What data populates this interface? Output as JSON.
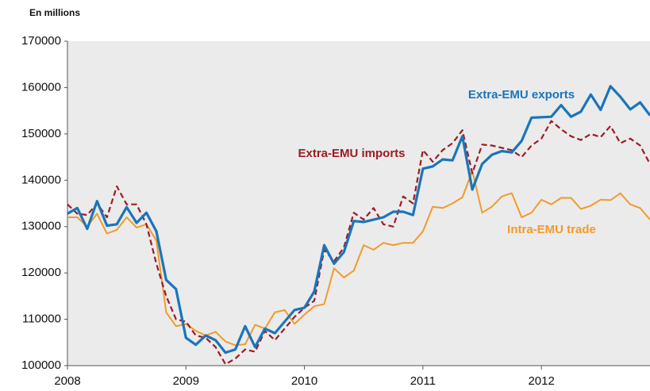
{
  "chart_data": {
    "type": "line",
    "y_axis_label": "En millions",
    "categories": [
      "2008",
      null,
      null,
      null,
      null,
      null,
      null,
      null,
      null,
      null,
      null,
      null,
      "2009",
      null,
      null,
      null,
      null,
      null,
      null,
      null,
      null,
      null,
      null,
      null,
      "2010",
      null,
      null,
      null,
      null,
      null,
      null,
      null,
      null,
      null,
      null,
      null,
      "2011",
      null,
      null,
      null,
      null,
      null,
      null,
      null,
      null,
      null,
      null,
      null,
      "2012",
      null,
      null,
      null,
      null,
      null,
      null,
      null,
      null,
      null,
      null,
      null
    ],
    "series": [
      {
        "name": "Intra-EMU trade",
        "color": "#f39a2b",
        "dashed": false,
        "values": [
          132000,
          132000,
          130000,
          132800,
          128500,
          129300,
          132000,
          129800,
          130500,
          127000,
          111500,
          108500,
          109000,
          107500,
          106500,
          107300,
          105200,
          104400,
          104600,
          108800,
          108000,
          111500,
          112000,
          109000,
          111000,
          112800,
          113300,
          121000,
          119000,
          120500,
          126000,
          125000,
          126500,
          126000,
          126500,
          126500,
          129000,
          134300,
          134000,
          135000,
          136300,
          142000,
          133000,
          134300,
          136500,
          137200,
          132000,
          133000,
          135800,
          134800,
          136200,
          136200,
          133800,
          134500,
          135800,
          135700,
          137200,
          134800,
          134000,
          131500
        ]
      },
      {
        "name": "Extra-EMU imports",
        "color": "#9b1c24",
        "dashed": true,
        "values": [
          134800,
          132800,
          132500,
          135000,
          132000,
          138700,
          134800,
          134800,
          130500,
          122000,
          115000,
          110000,
          109500,
          106500,
          106000,
          104000,
          100300,
          101500,
          103500,
          103000,
          107500,
          105500,
          108000,
          110500,
          112500,
          114000,
          125000,
          122500,
          125500,
          133000,
          131500,
          134000,
          130500,
          130000,
          136500,
          135000,
          146500,
          144000,
          146500,
          148000,
          150800,
          141500,
          147700,
          147500,
          147000,
          146500,
          145000,
          147500,
          149000,
          152800,
          151000,
          149500,
          148700,
          150000,
          149300,
          151700,
          148000,
          149000,
          147500,
          143500
        ]
      },
      {
        "name": "Extra-EMU exports",
        "color": "#1a75bb",
        "dashed": false,
        "values": [
          132800,
          134000,
          129500,
          135500,
          130200,
          130500,
          134200,
          130800,
          133000,
          129000,
          118500,
          116500,
          106000,
          104500,
          106500,
          105500,
          102800,
          103500,
          108500,
          104000,
          108000,
          107000,
          109500,
          112000,
          112500,
          116000,
          126000,
          122000,
          124500,
          131200,
          131000,
          131500,
          132000,
          133200,
          133200,
          132500,
          142500,
          143000,
          144500,
          144300,
          149500,
          138000,
          143500,
          145500,
          146300,
          146000,
          148500,
          153500,
          153600,
          153700,
          156200,
          153700,
          154800,
          158500,
          155200,
          160300,
          158000,
          155300,
          156800,
          154000
        ]
      }
    ],
    "annotations": [
      {
        "text": "Intra-EMU trade",
        "color": "#f39a2b"
      },
      {
        "text": "Extra-EMU imports",
        "color": "#9b1c24"
      },
      {
        "text": "Extra-EMU exports",
        "color": "#1a75bb"
      }
    ],
    "ylim": [
      100000,
      170000
    ],
    "yticks": [
      100000,
      110000,
      120000,
      130000,
      140000,
      150000,
      160000,
      170000
    ],
    "grid": false
  }
}
